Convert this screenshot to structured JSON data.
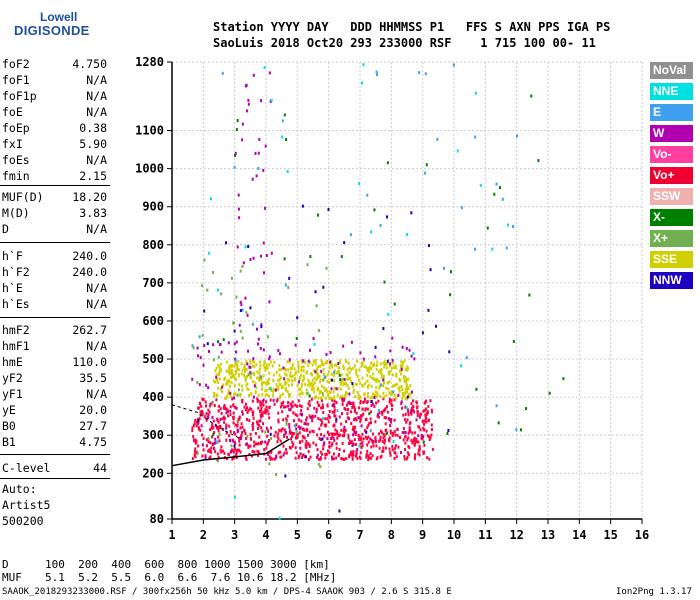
{
  "logo": {
    "line1": "Lowell",
    "line2": "DIGISONDE"
  },
  "header": {
    "row1": "Station YYYY DAY   DDD HHMMSS P1   FFS S AXN PPS IGA PS",
    "row2": "SaoLuis 2018 Oct20 293 233000 RSF    1 715 100 00- 11"
  },
  "params": [
    {
      "label": "foF2",
      "value": "4.750"
    },
    {
      "label": "foF1",
      "value": "N/A"
    },
    {
      "label": "foF1p",
      "value": "N/A"
    },
    {
      "label": "foE",
      "value": "N/A"
    },
    {
      "label": "foEp",
      "value": "0.38"
    },
    {
      "label": "fxI",
      "value": "5.90"
    },
    {
      "label": "foEs",
      "value": "N/A"
    },
    {
      "label": "fmin",
      "value": "2.15"
    },
    {
      "label": "MUF(D)",
      "value": "18.20"
    },
    {
      "label": "M(D)",
      "value": "3.83"
    },
    {
      "label": "D",
      "value": "N/A"
    },
    {
      "label": "h`F",
      "value": "240.0"
    },
    {
      "label": "h`F2",
      "value": "240.0"
    },
    {
      "label": "h`E",
      "value": "N/A"
    },
    {
      "label": "h`Es",
      "value": "N/A"
    },
    {
      "label": "hmF2",
      "value": "262.7"
    },
    {
      "label": "hmF1",
      "value": "N/A"
    },
    {
      "label": "hmE",
      "value": "110.0"
    },
    {
      "label": "yF2",
      "value": "35.5"
    },
    {
      "label": "yF1",
      "value": "N/A"
    },
    {
      "label": "yE",
      "value": "20.0"
    },
    {
      "label": "B0",
      "value": "27.7"
    },
    {
      "label": "B1",
      "value": "4.75"
    },
    {
      "label": "C-level",
      "value": "44"
    }
  ],
  "auto": [
    "Auto:",
    "Artist5",
    "500200"
  ],
  "legend": [
    {
      "label": "NoVal",
      "color": "#909090"
    },
    {
      "label": "NNE",
      "color": "#00e0e0"
    },
    {
      "label": "E",
      "color": "#40a0f0"
    },
    {
      "label": "W",
      "color": "#b000b0"
    },
    {
      "label": "Vo-",
      "color": "#ff40a0"
    },
    {
      "label": "Vo+",
      "color": "#f00030"
    },
    {
      "label": "SSW",
      "color": "#f0b0b0"
    },
    {
      "label": "X-",
      "color": "#008000"
    },
    {
      "label": "X+",
      "color": "#70b050"
    },
    {
      "label": "SSE",
      "color": "#d0d000"
    },
    {
      "label": "NNW",
      "color": "#2000c0"
    }
  ],
  "chart_data": {
    "type": "scatter",
    "title": "",
    "xlabel": "",
    "ylabel": "",
    "x_ticks": [
      "1",
      "2",
      "3",
      "4",
      "5",
      "6",
      "7",
      "8",
      "9",
      "10",
      "11",
      "12",
      "13",
      "14",
      "15",
      "16"
    ],
    "y_ticks": [
      80,
      200,
      300,
      400,
      500,
      600,
      700,
      800,
      900,
      1000,
      1100,
      1280
    ],
    "y_tick_labels": [
      "80",
      "200",
      "300",
      "400",
      "500",
      "600",
      "700",
      "800",
      "900",
      "1000",
      "1100",
      "1280"
    ],
    "xlim": [
      1,
      16
    ],
    "ylim": [
      80,
      1280
    ],
    "series": [
      {
        "color": "#ff0040",
        "clusters": [
          {
            "x": [
              1.6,
              9.3
            ],
            "y": [
              240,
              400
            ],
            "n": 900
          }
        ]
      },
      {
        "color": "#d0d000",
        "clusters": [
          {
            "x": [
              2.3,
              8.6
            ],
            "y": [
              400,
              500
            ],
            "n": 600
          }
        ]
      },
      {
        "color": "#b000b0",
        "clusters": [
          {
            "x": [
              1.6,
              9.0
            ],
            "y": [
              240,
              560
            ],
            "n": 150
          },
          {
            "x": [
              3.0,
              4.2
            ],
            "y": [
              560,
              1280
            ],
            "n": 40
          }
        ]
      },
      {
        "color": "#40a0f0",
        "clusters": [
          {
            "x": [
              1.6,
              12.0
            ],
            "y": [
              260,
              1280
            ],
            "n": 40
          }
        ]
      },
      {
        "color": "#00e0e0",
        "clusters": [
          {
            "x": [
              1.6,
              12.0
            ],
            "y": [
              80,
              1280
            ],
            "n": 30
          }
        ]
      },
      {
        "color": "#008000",
        "clusters": [
          {
            "x": [
              1.6,
              13.5
            ],
            "y": [
              260,
              1200
            ],
            "n": 40
          }
        ]
      },
      {
        "color": "#2000c0",
        "clusters": [
          {
            "x": [
              1.6,
              10.0
            ],
            "y": [
              80,
              920
            ],
            "n": 40
          }
        ]
      },
      {
        "color": "#70b050",
        "clusters": [
          {
            "x": [
              1.6,
              6.0
            ],
            "y": [
              200,
              780
            ],
            "n": 50
          }
        ]
      }
    ],
    "trace_curve": {
      "x": [
        1.0,
        2.0,
        3.0,
        4.0,
        4.75
      ],
      "y": [
        220,
        235,
        243,
        252,
        290
      ]
    },
    "trace_curve2": {
      "x": [
        1.0,
        1.8,
        2.5,
        3.2
      ],
      "y": [
        380,
        360,
        320,
        290
      ]
    }
  },
  "bottom": {
    "d_label": "D",
    "d_values": "100  200  400  600  800 1000 1500 3000 [km]",
    "muf_label": "MUF",
    "muf_values": "5.1  5.2  5.5  6.0  6.6  7.6 10.6 18.2 [MHz]"
  },
  "footer": {
    "left": "SAAOK_2018293233000.RSF / 300fx256h 50 kHz 5.0 km / DPS-4 SAAOK 903 / 2.6 S 315.8 E",
    "right": "Ion2Png 1.3.17"
  }
}
